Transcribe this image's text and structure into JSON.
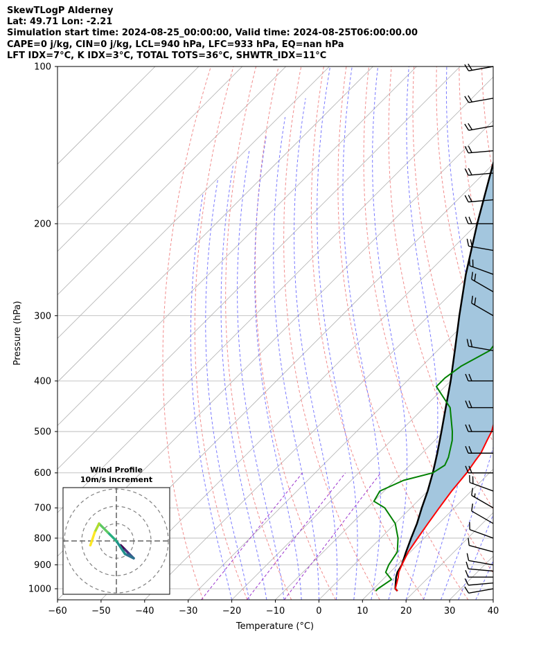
{
  "header": {
    "line1": "SkewTLogP Alderney",
    "line2": "Lat: 49.71   Lon: -2.21",
    "line3": "Simulation start time: 2024-08-25_00:00:00, Valid time: 2024-08-25T06:00:00.00",
    "line4": "CAPE=0 j/kg, CIN=0 j/kg, LCL=940 hPa, LFC=933 hPa, EQ=nan hPa",
    "line5": "LFT IDX=7°C, K IDX=3°C, TOTAL TOTS=36°C, SHWTR_IDX=11°C"
  },
  "chart_data": {
    "type": "skew-t log-p",
    "xlabel": "Temperature (°C)",
    "ylabel": "Pressure (hPa)",
    "xlim": [
      -60,
      40
    ],
    "ylim": [
      1050,
      100
    ],
    "y_scale": "log",
    "x_ticks": [
      "−60",
      "−50",
      "−40",
      "−30",
      "−20",
      "−10",
      "0",
      "10",
      "20",
      "30",
      "40"
    ],
    "y_ticks": [
      "100",
      "200",
      "300",
      "400",
      "500",
      "600",
      "700",
      "800",
      "900",
      "1000"
    ],
    "grid": true,
    "colors": {
      "temperature": "#ff0000",
      "dewpoint": "#008000",
      "parcel": "#000000",
      "shading": "#a3c6de",
      "dry_adiabats": "#f08080",
      "moist_adiabats": "#6a6aff",
      "mixing_ratio": "#9932cc",
      "isotherms": "#b0b0b0"
    },
    "temperature": {
      "p": [
        1010,
        1000,
        950,
        930,
        900,
        850,
        800,
        750,
        700,
        650,
        600,
        570,
        550,
        520,
        500,
        450,
        400,
        350,
        300,
        280,
        265,
        250,
        235,
        215,
        200,
        190,
        180,
        160,
        145,
        130,
        115,
        105,
        100
      ],
      "t": [
        16,
        15,
        13,
        12,
        11,
        9.5,
        8.5,
        7.5,
        6.5,
        5.5,
        4.8,
        4,
        3.5,
        2,
        1,
        -3,
        -7,
        -11,
        -14.5,
        -16,
        -16.5,
        -16,
        -15,
        -13,
        -11,
        -9,
        -8,
        -7,
        -6,
        -5.5,
        -4,
        -3.5,
        -3
      ]
    },
    "dewpoint": {
      "p": [
        1010,
        1000,
        960,
        930,
        900,
        850,
        800,
        750,
        700,
        680,
        650,
        620,
        600,
        580,
        560,
        520,
        500,
        450,
        410,
        395,
        375,
        350,
        320,
        290,
        265,
        245,
        225,
        205,
        190,
        180,
        165,
        150,
        130,
        112,
        100
      ],
      "t": [
        11,
        11,
        12,
        9,
        8,
        7,
        4,
        0,
        -6,
        -10,
        -11,
        -8,
        -3,
        -2,
        -3,
        -6,
        -8,
        -14,
        -22,
        -22,
        -21,
        -18,
        -19,
        -21,
        -22,
        -24,
        -27,
        -30,
        -33,
        -37,
        -36,
        -34,
        -31,
        -29,
        -27
      ]
    },
    "parcel": {
      "p": [
        1010,
        1000,
        950,
        930,
        900,
        850,
        800,
        750,
        700,
        650,
        600,
        550,
        500,
        450,
        400,
        350,
        300,
        250,
        200,
        150,
        100
      ],
      "t": [
        16,
        15,
        12.5,
        11.7,
        11,
        9,
        7,
        5,
        2.5,
        0,
        -3,
        -6.5,
        -10.5,
        -15,
        -20,
        -26,
        -33,
        -41,
        -50,
        -61,
        -75
      ]
    },
    "wind_barbs": {
      "p": [
        1000,
        975,
        950,
        925,
        900,
        850,
        800,
        750,
        700,
        650,
        600,
        550,
        500,
        450,
        400,
        350,
        300,
        270,
        250,
        225,
        200,
        180,
        160,
        145,
        130,
        115,
        100
      ],
      "speed_kt": [
        10,
        10,
        10,
        10,
        10,
        10,
        10,
        10,
        15,
        20,
        20,
        20,
        20,
        20,
        20,
        20,
        20,
        20,
        20,
        20,
        20,
        20,
        20,
        20,
        20,
        20,
        20
      ],
      "direction_deg": [
        260,
        265,
        270,
        275,
        280,
        285,
        290,
        300,
        300,
        290,
        270,
        270,
        270,
        270,
        270,
        280,
        300,
        300,
        290,
        280,
        270,
        265,
        265,
        265,
        260,
        260,
        260
      ]
    },
    "hodograph": {
      "title": "Wind Profile",
      "subtitle": "10m/s increment",
      "u": [
        -3,
        -2,
        -1,
        0,
        -2,
        -4,
        -6,
        -8,
        -9,
        -10
      ],
      "v": [
        -1,
        -2,
        -3,
        -4,
        -3,
        0,
        2,
        4,
        2,
        -1
      ]
    }
  }
}
